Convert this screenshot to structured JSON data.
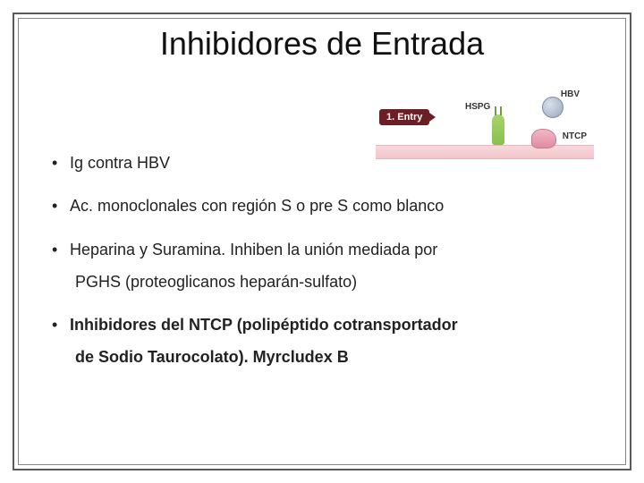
{
  "title": "Inhibidores de Entrada",
  "bullets": {
    "b1": "Ig contra HBV",
    "b2": "Ac. monoclonales con región S o pre S como blanco",
    "b3_line1": "Heparina y Suramina. Inhiben la unión mediada por",
    "b3_line2": "PGHS (proteoglicanos heparán-sulfato)",
    "b4_line1": "Inhibidores del NTCP (polipéptido cotransportador",
    "b4_line2": "de Sodio Taurocolato). Myrcludex B"
  },
  "diagram": {
    "tag": "1. Entry",
    "hspg": "HSPG",
    "hbv": "HBV",
    "ntcp": "NTCP",
    "colors": {
      "tag_bg": "#6b1f25",
      "hspg_fill": "#8abf4e",
      "hbv_fill": "#9aa8bd",
      "ntcp_fill": "#e08ca1",
      "membrane": "#f2c4c9"
    }
  },
  "style": {
    "title_fontsize": 36,
    "body_fontsize": 18,
    "border_color": "#5a5a5a",
    "text_color": "#222"
  }
}
